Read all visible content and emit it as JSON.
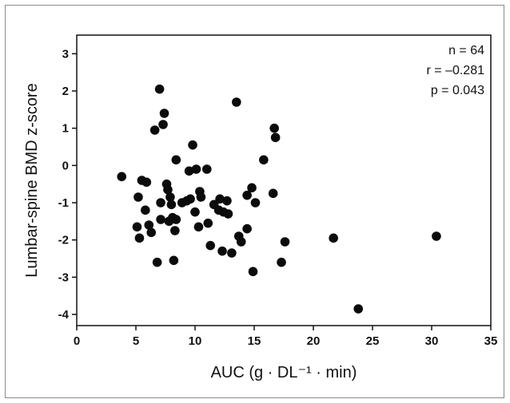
{
  "chart_data": {
    "type": "scatter",
    "title": "",
    "xlabel": "AUC (g · DL⁻¹ · min)",
    "ylabel": "Lumbar-spine BMD z-score",
    "xlim": [
      0,
      35
    ],
    "ylim": [
      -4.3,
      3.5
    ],
    "xticks": [
      0,
      5,
      10,
      15,
      20,
      25,
      30,
      35
    ],
    "yticks": [
      3,
      2,
      1,
      0,
      -1,
      -2,
      -3,
      -4
    ],
    "grid": false,
    "annotations": [
      "n = 64",
      "r = –0.281",
      "p = 0.043"
    ],
    "points": [
      {
        "x": 3.8,
        "y": -0.3
      },
      {
        "x": 5.2,
        "y": -0.85
      },
      {
        "x": 5.5,
        "y": -0.4
      },
      {
        "x": 5.1,
        "y": -1.65
      },
      {
        "x": 5.3,
        "y": -1.95
      },
      {
        "x": 5.8,
        "y": -1.2
      },
      {
        "x": 5.9,
        "y": -0.45
      },
      {
        "x": 6.1,
        "y": -1.6
      },
      {
        "x": 6.3,
        "y": -1.8
      },
      {
        "x": 6.6,
        "y": 0.95
      },
      {
        "x": 6.8,
        "y": -2.6
      },
      {
        "x": 7.0,
        "y": 2.05
      },
      {
        "x": 7.1,
        "y": -1.0
      },
      {
        "x": 7.1,
        "y": -1.45
      },
      {
        "x": 7.3,
        "y": 1.1
      },
      {
        "x": 7.4,
        "y": 1.4
      },
      {
        "x": 7.6,
        "y": -0.5
      },
      {
        "x": 7.7,
        "y": -0.65
      },
      {
        "x": 7.8,
        "y": -1.5
      },
      {
        "x": 7.9,
        "y": -0.85
      },
      {
        "x": 8.0,
        "y": -1.05
      },
      {
        "x": 8.1,
        "y": -1.4
      },
      {
        "x": 8.2,
        "y": -2.55
      },
      {
        "x": 8.3,
        "y": -1.75
      },
      {
        "x": 8.4,
        "y": 0.15
      },
      {
        "x": 8.4,
        "y": -1.45
      },
      {
        "x": 8.9,
        "y": -1.0
      },
      {
        "x": 9.3,
        "y": -0.95
      },
      {
        "x": 9.5,
        "y": -0.15
      },
      {
        "x": 9.6,
        "y": -0.9
      },
      {
        "x": 9.8,
        "y": 0.55
      },
      {
        "x": 10.0,
        "y": -1.25
      },
      {
        "x": 10.1,
        "y": -0.1
      },
      {
        "x": 10.3,
        "y": -1.65
      },
      {
        "x": 10.4,
        "y": -0.7
      },
      {
        "x": 10.5,
        "y": -0.85
      },
      {
        "x": 11.0,
        "y": -0.1
      },
      {
        "x": 11.1,
        "y": -1.55
      },
      {
        "x": 11.3,
        "y": -2.15
      },
      {
        "x": 11.6,
        "y": -1.05
      },
      {
        "x": 12.0,
        "y": -1.2
      },
      {
        "x": 12.1,
        "y": -0.9
      },
      {
        "x": 12.3,
        "y": -2.3
      },
      {
        "x": 12.4,
        "y": -1.25
      },
      {
        "x": 12.7,
        "y": -0.95
      },
      {
        "x": 12.8,
        "y": -1.3
      },
      {
        "x": 13.1,
        "y": -2.35
      },
      {
        "x": 13.5,
        "y": 1.7
      },
      {
        "x": 13.7,
        "y": -1.9
      },
      {
        "x": 13.9,
        "y": -2.05
      },
      {
        "x": 14.4,
        "y": -1.7
      },
      {
        "x": 14.4,
        "y": -0.8
      },
      {
        "x": 14.8,
        "y": -0.6
      },
      {
        "x": 14.9,
        "y": -2.85
      },
      {
        "x": 15.1,
        "y": -1.0
      },
      {
        "x": 15.8,
        "y": 0.15
      },
      {
        "x": 16.6,
        "y": -0.75
      },
      {
        "x": 16.7,
        "y": 1.0
      },
      {
        "x": 16.8,
        "y": 0.75
      },
      {
        "x": 17.3,
        "y": -2.6
      },
      {
        "x": 17.6,
        "y": -2.05
      },
      {
        "x": 21.7,
        "y": -1.95
      },
      {
        "x": 23.8,
        "y": -3.85
      },
      {
        "x": 30.4,
        "y": -1.9
      }
    ]
  }
}
